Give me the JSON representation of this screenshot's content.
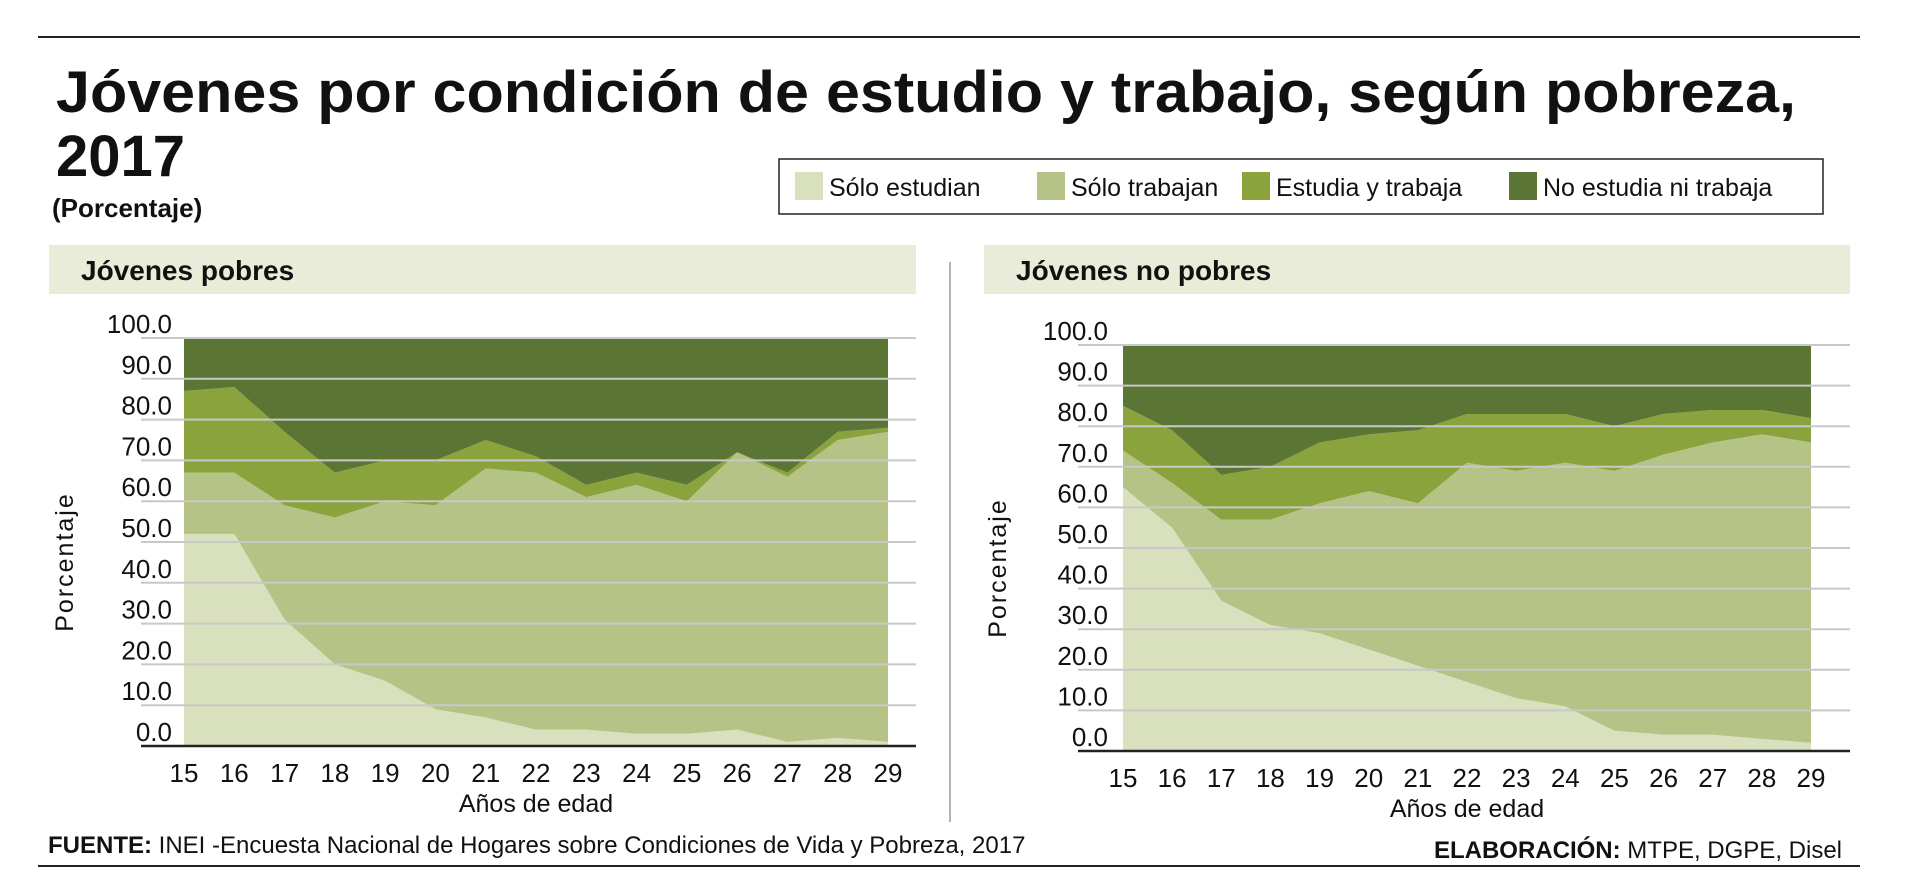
{
  "title_line1": "Jóvenes por condición de estudio y trabajo, según pobreza,",
  "title_line2": "2017",
  "subtitle": "(Porcentaje)",
  "legend": [
    {
      "label": "Sólo estudian",
      "color": "#d9e0bd"
    },
    {
      "label": "Sólo trabajan",
      "color": "#b5c486"
    },
    {
      "label": "Estudia y trabaja",
      "color": "#8ba33c"
    },
    {
      "label": "No estudia ni trabaja",
      "color": "#5b7634"
    }
  ],
  "footer": {
    "source_label": "FUENTE:",
    "source_text": " INEI -Encuesta Nacional de Hogares sobre Condiciones de Vida y Pobreza, 2017",
    "credit_label": "ELABORACIÓN:",
    "credit_text": " MTPE, DGPE, Disel"
  },
  "chart_data": [
    {
      "type": "area",
      "stacked": true,
      "title": "Jóvenes pobres",
      "xlabel": "Años de edad",
      "ylabel": "Porcentaje",
      "ylim": [
        0,
        100
      ],
      "yticks": [
        "0.0",
        "10.0",
        "20.0",
        "30.0",
        "40.0",
        "50.0",
        "60.0",
        "70.0",
        "80.0",
        "90.0",
        "100.0"
      ],
      "grid": true,
      "x": [
        15,
        16,
        17,
        18,
        19,
        20,
        21,
        22,
        23,
        24,
        25,
        26,
        27,
        28,
        29
      ],
      "series": [
        {
          "name": "Sólo estudian",
          "values": [
            52,
            52,
            31,
            20,
            16,
            9,
            7,
            4,
            4,
            3,
            3,
            4,
            1,
            2,
            1
          ]
        },
        {
          "name": "Sólo trabajan",
          "values": [
            15,
            15,
            28,
            36,
            44,
            50,
            61,
            63,
            57,
            61,
            57,
            68,
            65,
            73,
            76
          ]
        },
        {
          "name": "Estudia y trabaja",
          "values": [
            20,
            21,
            18,
            11,
            10,
            11,
            7,
            4,
            3,
            3,
            4,
            0,
            1,
            2,
            1
          ]
        },
        {
          "name": "No estudia ni trabaja",
          "values": [
            13,
            12,
            23,
            33,
            30,
            30,
            25,
            29,
            36,
            33,
            36,
            28,
            33,
            23,
            22
          ]
        }
      ]
    },
    {
      "type": "area",
      "stacked": true,
      "title": "Jóvenes no pobres",
      "xlabel": "Años de edad",
      "ylabel": "Porcentaje",
      "ylim": [
        0,
        100
      ],
      "yticks": [
        "0.0",
        "10.0",
        "20.0",
        "30.0",
        "40.0",
        "50.0",
        "60.0",
        "70.0",
        "80.0",
        "90.0",
        "100.0"
      ],
      "grid": true,
      "x": [
        15,
        16,
        17,
        18,
        19,
        20,
        21,
        22,
        23,
        24,
        25,
        26,
        27,
        28,
        29
      ],
      "series": [
        {
          "name": "Sólo estudian",
          "values": [
            65,
            55,
            37,
            31,
            29,
            25,
            21,
            17,
            13,
            11,
            5,
            4,
            4,
            3,
            2
          ]
        },
        {
          "name": "Sólo trabajan",
          "values": [
            9,
            11,
            20,
            26,
            32,
            39,
            40,
            54,
            56,
            60,
            64,
            69,
            72,
            75,
            74
          ]
        },
        {
          "name": "Estudia y trabaja",
          "values": [
            11,
            13,
            11,
            13,
            15,
            14,
            18,
            12,
            14,
            12,
            11,
            10,
            8,
            6,
            6
          ]
        },
        {
          "name": "No estudia ni trabaja",
          "values": [
            15,
            21,
            32,
            30,
            24,
            22,
            21,
            17,
            17,
            17,
            20,
            17,
            16,
            16,
            18
          ]
        }
      ]
    }
  ]
}
